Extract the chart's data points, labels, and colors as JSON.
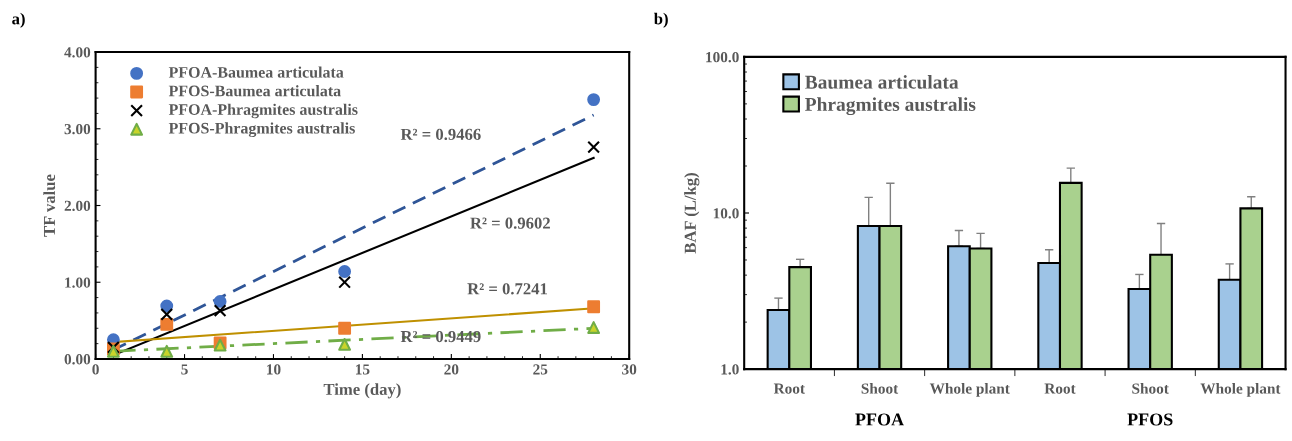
{
  "chart_data": [
    {
      "type": "scatter",
      "title": "a)",
      "xlabel": "Time (day)",
      "ylabel": "TF value",
      "xlim": [
        0,
        30
      ],
      "xticks": [
        0,
        5,
        10,
        15,
        20,
        25,
        30
      ],
      "ylim": [
        0,
        4
      ],
      "yticks": [
        {
          "value": 0,
          "label": "0.00"
        },
        {
          "value": 1,
          "label": "1.00"
        },
        {
          "value": 2,
          "label": "2.00"
        },
        {
          "value": 3,
          "label": "3.00"
        },
        {
          "value": 4,
          "label": "4.00"
        }
      ],
      "x": [
        1,
        4,
        7,
        14,
        28
      ],
      "grid": false,
      "legend": "top left",
      "series": [
        {
          "name": "PFOA-Baumea articulata",
          "color": "#4472c4",
          "marker": "circle",
          "values": [
            0.25,
            0.69,
            0.75,
            1.14,
            3.38
          ]
        },
        {
          "name": "PFOS-Baumea articulata",
          "color": "#ed7d31",
          "marker": "square",
          "values": [
            0.13,
            0.45,
            0.21,
            0.4,
            0.68
          ]
        },
        {
          "name": "PFOA-Phragmites australis",
          "color": "#000000",
          "marker": "cross",
          "values": [
            0.15,
            0.58,
            0.63,
            1.0,
            2.76
          ]
        },
        {
          "name": "PFOS-Phragmites australis",
          "color": "#c9d42a",
          "marker": "triangle",
          "values": [
            0.1,
            0.1,
            0.18,
            0.19,
            0.41
          ]
        },
        {
          "type": "line",
          "color": "#2f5597",
          "line_style": "dashed",
          "values": [
            0.12,
            null,
            null,
            null,
            3.18
          ]
        },
        {
          "type": "line",
          "color": "#000000",
          "line_style": "solid",
          "values": [
            0.05,
            null,
            null,
            null,
            2.62
          ]
        },
        {
          "type": "line",
          "color": "#bf9000",
          "line_style": "solid",
          "values": [
            0.22,
            null,
            null,
            null,
            0.66
          ]
        },
        {
          "type": "line",
          "color": "#70ad47",
          "line_style": "dashdot",
          "values": [
            0.1,
            null,
            null,
            null,
            0.4
          ]
        }
      ],
      "annotations": [
        "R² = 0.9466",
        "R² = 0.9602",
        "R² = 0.7241",
        "R² = 0.9449"
      ]
    },
    {
      "type": "bar",
      "title": "b)",
      "ylabel": "BAF (L/kg)",
      "log": true,
      "categories": [
        "Root",
        "Shoot",
        "Whole plant",
        "Root",
        "Shoot",
        "Whole plant"
      ],
      "ylim": [
        1,
        100
      ],
      "yticks": [
        {
          "value": 1,
          "label": "1.0"
        },
        {
          "value": 10,
          "label": "10.0"
        },
        {
          "value": 100,
          "label": "100.0"
        }
      ],
      "grid": false,
      "legend": "top left",
      "series": [
        {
          "name": "Baumea articulata",
          "color": "#9dc3e6",
          "values": [
            2.39,
            8.26,
            6.12,
            4.78,
            3.26,
            3.74
          ],
          "errors": [
            [
              2.39,
              2.85
            ],
            [
              8.26,
              12.6
            ],
            [
              6.12,
              7.73
            ],
            [
              4.78,
              5.81
            ],
            [
              3.26,
              4.04
            ],
            [
              3.74,
              4.72
            ]
          ]
        },
        {
          "name": "Phragmites australis",
          "color": "#a9d18e",
          "values": [
            4.5,
            8.26,
            5.93,
            15.6,
            5.4,
            10.7
          ],
          "errors": [
            [
              4.5,
              5.05
            ],
            [
              8.26,
              15.5
            ],
            [
              5.93,
              7.41
            ],
            [
              15.6,
              19.4
            ],
            [
              5.4,
              8.57
            ],
            [
              10.7,
              12.7
            ]
          ]
        }
      ],
      "annotations": [
        "PFOA",
        "PFOS"
      ]
    }
  ]
}
